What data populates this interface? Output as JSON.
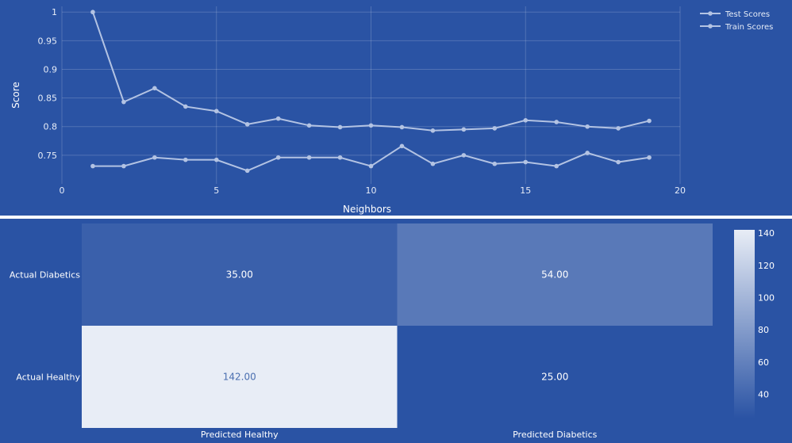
{
  "chart_data": [
    {
      "type": "line",
      "xlabel": "Neighbors",
      "ylabel": "Score",
      "xlim": [
        0,
        20
      ],
      "ylim": [
        0.7,
        1.01
      ],
      "x_ticks": [
        "0",
        "5",
        "10",
        "15",
        "20"
      ],
      "y_ticks": [
        "0.75",
        "0.8",
        "0.85",
        "0.9",
        "0.95",
        "1"
      ],
      "grid": true,
      "legend_position": "top-right",
      "x": [
        1,
        2,
        3,
        4,
        5,
        6,
        7,
        8,
        9,
        10,
        11,
        12,
        13,
        14,
        15,
        16,
        17,
        18,
        19
      ],
      "series": [
        {
          "name": "Test Scores",
          "color": "#b3c3e3",
          "values": [
            0.731,
            0.731,
            0.746,
            0.742,
            0.742,
            0.723,
            0.746,
            0.746,
            0.746,
            0.731,
            0.766,
            0.735,
            0.75,
            0.735,
            0.738,
            0.731,
            0.754,
            0.738,
            0.746
          ]
        },
        {
          "name": "Train Scores",
          "color": "#b3c3e3",
          "values": [
            1.0,
            0.843,
            0.867,
            0.835,
            0.827,
            0.804,
            0.814,
            0.802,
            0.799,
            0.802,
            0.799,
            0.793,
            0.795,
            0.797,
            0.811,
            0.808,
            0.8,
            0.797,
            0.81
          ]
        }
      ]
    },
    {
      "type": "heatmap",
      "x_categories": [
        "Predicted Healthy",
        "Predicted Diabetics"
      ],
      "y_categories": [
        "Actual Diabetics",
        "Actual Healthy"
      ],
      "values": [
        [
          35,
          54
        ],
        [
          142,
          25
        ]
      ],
      "cell_text": [
        [
          "35.00",
          "54.00"
        ],
        [
          "142.00",
          "25.00"
        ]
      ],
      "zlim": [
        25,
        142
      ],
      "colorbar_ticks": [
        "40",
        "60",
        "80",
        "100",
        "120",
        "140"
      ],
      "colorbar_values": [
        40,
        60,
        80,
        100,
        120,
        140
      ],
      "colorscale": {
        "low": "#2a53a4",
        "high": "#e8edf6"
      }
    }
  ]
}
